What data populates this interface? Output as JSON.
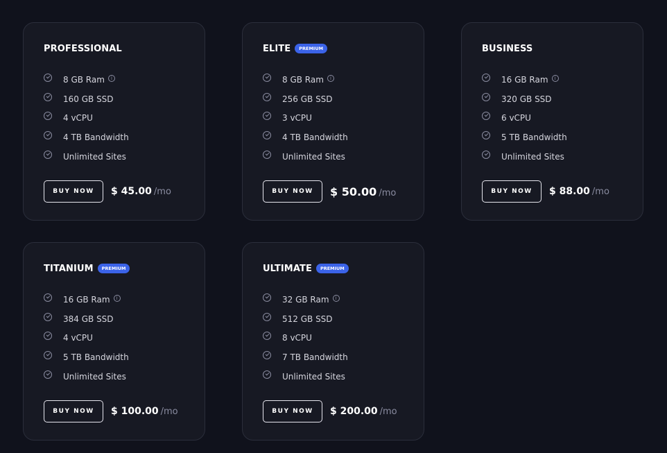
{
  "plans": [
    {
      "name": "PROFESSIONAL",
      "badge": null,
      "features": [
        "8 GB Ram",
        "160 GB SSD",
        "4 vCPU",
        "4 TB Bandwidth",
        "Unlimited Sites"
      ],
      "button": "BUY NOW",
      "price": "$ 45.00",
      "period": "/mo"
    },
    {
      "name": "ELITE",
      "badge": "PREMIUM",
      "features": [
        "8 GB Ram",
        "256 GB SSD",
        "3 vCPU",
        "4 TB Bandwidth",
        "Unlimited Sites"
      ],
      "button": "BUY NOW",
      "price": "$ 50.00",
      "period": "/mo"
    },
    {
      "name": "BUSINESS",
      "badge": null,
      "features": [
        "16 GB Ram",
        "320 GB SSD",
        "6 vCPU",
        "5 TB Bandwidth",
        "Unlimited Sites"
      ],
      "button": "BUY NOW",
      "price": "$ 88.00",
      "period": "/mo"
    },
    {
      "name": "TITANIUM",
      "badge": "PREMIUM",
      "features": [
        "16 GB Ram",
        "384 GB SSD",
        "4 vCPU",
        "5 TB Bandwidth",
        "Unlimited Sites"
      ],
      "button": "BUY NOW",
      "price": "$ 100.00",
      "period": "/mo"
    },
    {
      "name": "ULTIMATE",
      "badge": "PREMIUM",
      "features": [
        "32 GB Ram",
        "512 GB SSD",
        "8 vCPU",
        "7 TB Bandwidth",
        "Unlimited Sites"
      ],
      "button": "BUY NOW",
      "price": "$ 200.00",
      "period": "/mo"
    }
  ],
  "colors": {
    "background": "#10121c",
    "card": "#171923",
    "badge": "#3b63e8"
  },
  "icons": {
    "feature": "check-circle-icon",
    "info": "info-icon"
  }
}
